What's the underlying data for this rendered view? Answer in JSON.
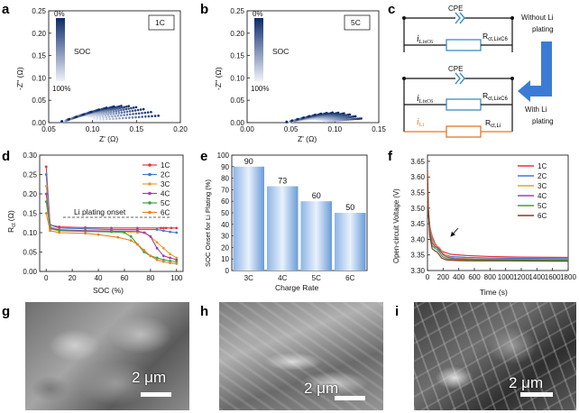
{
  "panels": {
    "a": {
      "label": "a",
      "box": "1C",
      "soc_top": "0%",
      "soc_bottom": "100%",
      "soc_title": "SOC",
      "xlabel": "Z' (Ω)",
      "ylabel": "-Z'' (Ω)"
    },
    "b": {
      "label": "b",
      "box": "5C",
      "soc_top": "0%",
      "soc_bottom": "100%",
      "soc_title": "SOC",
      "xlabel": "Z' (Ω)",
      "ylabel": "-Z'' (Ω)"
    },
    "c": {
      "label": "c",
      "cpe": "CPE",
      "i_lixc6": "LixC6",
      "r_lixc6": "ct,LixC6",
      "r_li": "ct,Li",
      "i_li": "Li",
      "without": "Without Li",
      "without2": "plating",
      "with": "With Li",
      "with2": "plating",
      "sym_i": "i",
      "sym_r": "R"
    },
    "d": {
      "label": "d",
      "xlabel": "SOC (%)",
      "ylabel_r": "R",
      "ylabel_sub": "ct",
      "ylabel_unit": "(Ω)",
      "annotation": "Li plating onset"
    },
    "e": {
      "label": "e",
      "xlabel": "Charge Rate",
      "ylabel": "SOC Onset for Li Plating (%)"
    },
    "f": {
      "label": "f",
      "xlabel": "Time (s)",
      "ylabel": "Open-circuit Voltage (V)"
    },
    "g": {
      "label": "g",
      "scale": "2 μm"
    },
    "h": {
      "label": "h",
      "scale": "2 μm"
    },
    "i": {
      "label": "i",
      "scale": "2 μm"
    }
  },
  "chart_data": [
    {
      "type": "scatter",
      "panel": "a",
      "xlim": [
        0.05,
        0.2
      ],
      "ylim": [
        0,
        0.25
      ],
      "xticks": [
        "0.05",
        "0.10",
        "0.15",
        "0.20"
      ],
      "yticks": [
        "0.00",
        "0.05",
        "0.10",
        "0.15",
        "0.20",
        "0.25"
      ],
      "series_count": 20,
      "arc_start_x": 0.065,
      "arc_end_x": [
        0.105,
        0.175
      ],
      "arc_peak_y": [
        0.02,
        0.05
      ]
    },
    {
      "type": "scatter",
      "panel": "b",
      "xlim": [
        0.0,
        0.15
      ],
      "ylim": [
        0,
        0.25
      ],
      "xticks": [
        "0.00",
        "0.05",
        "0.10",
        "0.15"
      ],
      "yticks": [
        "0.00",
        "0.05",
        "0.10",
        "0.15",
        "0.20",
        "0.25"
      ],
      "series_count": 20,
      "arc_start_x": 0.045,
      "arc_end_x": [
        0.09,
        0.13
      ],
      "arc_peak_y": [
        0.01,
        0.03
      ]
    },
    {
      "type": "line",
      "panel": "d",
      "xlim": [
        -5,
        105
      ],
      "ylim": [
        0,
        0.3
      ],
      "xticks": [
        "0",
        "20",
        "40",
        "60",
        "80",
        "100"
      ],
      "yticks": [
        "0.00",
        "0.05",
        "0.10",
        "0.15",
        "0.20",
        "0.25",
        "0.30"
      ],
      "series": [
        {
          "name": "1C",
          "color": "#e8333f",
          "x": [
            0,
            3,
            10,
            30,
            50,
            70,
            88,
            90,
            92,
            96,
            100
          ],
          "y": [
            0.27,
            0.12,
            0.115,
            0.113,
            0.112,
            0.112,
            0.112,
            0.112,
            0.112,
            0.112,
            0.112
          ]
        },
        {
          "name": "2C",
          "color": "#3b7bd6",
          "x": [
            0,
            3,
            10,
            30,
            50,
            70,
            85,
            90,
            95,
            100
          ],
          "y": [
            0.25,
            0.12,
            0.112,
            0.11,
            0.108,
            0.108,
            0.108,
            0.105,
            0.102,
            0.1
          ]
        },
        {
          "name": "3C",
          "color": "#e8a128",
          "x": [
            0,
            3,
            10,
            30,
            50,
            70,
            76,
            80,
            85,
            90,
            95,
            100
          ],
          "y": [
            0.22,
            0.115,
            0.108,
            0.105,
            0.104,
            0.1,
            0.1,
            0.09,
            0.075,
            0.06,
            0.045,
            0.035
          ]
        },
        {
          "name": "4C",
          "color": "#a040b0",
          "x": [
            0,
            3,
            10,
            30,
            50,
            70,
            75,
            80,
            85,
            90,
            95,
            100
          ],
          "y": [
            0.2,
            0.112,
            0.107,
            0.105,
            0.104,
            0.104,
            0.1,
            0.09,
            0.06,
            0.04,
            0.035,
            0.03
          ]
        },
        {
          "name": "5C",
          "color": "#3ba33b",
          "x": [
            0,
            3,
            10,
            30,
            50,
            60,
            65,
            70,
            75,
            80,
            85,
            90,
            95,
            100
          ],
          "y": [
            0.18,
            0.11,
            0.105,
            0.103,
            0.102,
            0.1,
            0.09,
            0.07,
            0.05,
            0.04,
            0.035,
            0.03,
            0.027,
            0.025
          ]
        },
        {
          "name": "6C",
          "color": "#f08020",
          "x": [
            0,
            3,
            10,
            30,
            40,
            55,
            65,
            70,
            75,
            80,
            85,
            90,
            95,
            100
          ],
          "y": [
            0.15,
            0.105,
            0.1,
            0.098,
            0.095,
            0.088,
            0.08,
            0.07,
            0.055,
            0.04,
            0.03,
            0.025,
            0.022,
            0.02
          ]
        }
      ]
    },
    {
      "type": "bar",
      "panel": "e",
      "categories": [
        "3C",
        "4C",
        "5C",
        "6C"
      ],
      "values": [
        90,
        73,
        60,
        50
      ],
      "ylim": [
        0,
        100
      ],
      "yticks": [
        "0",
        "10",
        "20",
        "30",
        "40",
        "50",
        "60",
        "70",
        "80",
        "90",
        "100"
      ],
      "color": "#6a9bd8"
    },
    {
      "type": "line",
      "panel": "f",
      "xlim": [
        0,
        1800
      ],
      "ylim": [
        3.3,
        3.67
      ],
      "xticks": [
        "0",
        "200",
        "400",
        "600",
        "800",
        "1000",
        "1200",
        "1400",
        "1600",
        "1800"
      ],
      "yticks": [
        "3.30",
        "3.35",
        "3.40",
        "3.45",
        "3.50",
        "3.55",
        "3.60",
        "3.65"
      ],
      "series": [
        {
          "name": "1C",
          "color": "#e8333f",
          "x": [
            0,
            10,
            30,
            60,
            100,
            150,
            200,
            300,
            500,
            800,
            1200,
            1800
          ],
          "y": [
            3.52,
            3.48,
            3.44,
            3.41,
            3.385,
            3.37,
            3.36,
            3.352,
            3.348,
            3.345,
            3.343,
            3.342
          ]
        },
        {
          "name": "2C",
          "color": "#3b7bd6",
          "x": [
            0,
            10,
            30,
            60,
            100,
            150,
            200,
            300,
            500,
            800,
            1200,
            1800
          ],
          "y": [
            3.54,
            3.49,
            3.44,
            3.405,
            3.38,
            3.365,
            3.352,
            3.345,
            3.342,
            3.34,
            3.339,
            3.338
          ]
        },
        {
          "name": "3C",
          "color": "#e8a128",
          "x": [
            0,
            10,
            30,
            60,
            100,
            130,
            160,
            200,
            260,
            350,
            600,
            1000,
            1800
          ],
          "y": [
            3.56,
            3.5,
            3.44,
            3.4,
            3.38,
            3.378,
            3.372,
            3.355,
            3.345,
            3.34,
            3.337,
            3.336,
            3.335
          ]
        },
        {
          "name": "4C",
          "color": "#a040b0",
          "x": [
            0,
            10,
            30,
            60,
            100,
            130,
            160,
            200,
            260,
            350,
            600,
            1000,
            1800
          ],
          "y": [
            3.58,
            3.5,
            3.43,
            3.39,
            3.375,
            3.374,
            3.366,
            3.35,
            3.342,
            3.338,
            3.336,
            3.335,
            3.334
          ]
        },
        {
          "name": "5C",
          "color": "#3ba33b",
          "x": [
            0,
            10,
            30,
            60,
            100,
            120,
            150,
            190,
            250,
            350,
            600,
            1000,
            1800
          ],
          "y": [
            3.6,
            3.5,
            3.42,
            3.38,
            3.37,
            3.368,
            3.36,
            3.345,
            3.338,
            3.335,
            3.334,
            3.333,
            3.333
          ]
        },
        {
          "name": "6C",
          "color": "#8a3a1a",
          "x": [
            0,
            10,
            30,
            60,
            100,
            120,
            140,
            180,
            240,
            350,
            600,
            1000,
            1800
          ],
          "y": [
            3.62,
            3.5,
            3.41,
            3.37,
            3.362,
            3.36,
            3.354,
            3.34,
            3.334,
            3.332,
            3.331,
            3.331,
            3.33
          ]
        }
      ]
    }
  ]
}
